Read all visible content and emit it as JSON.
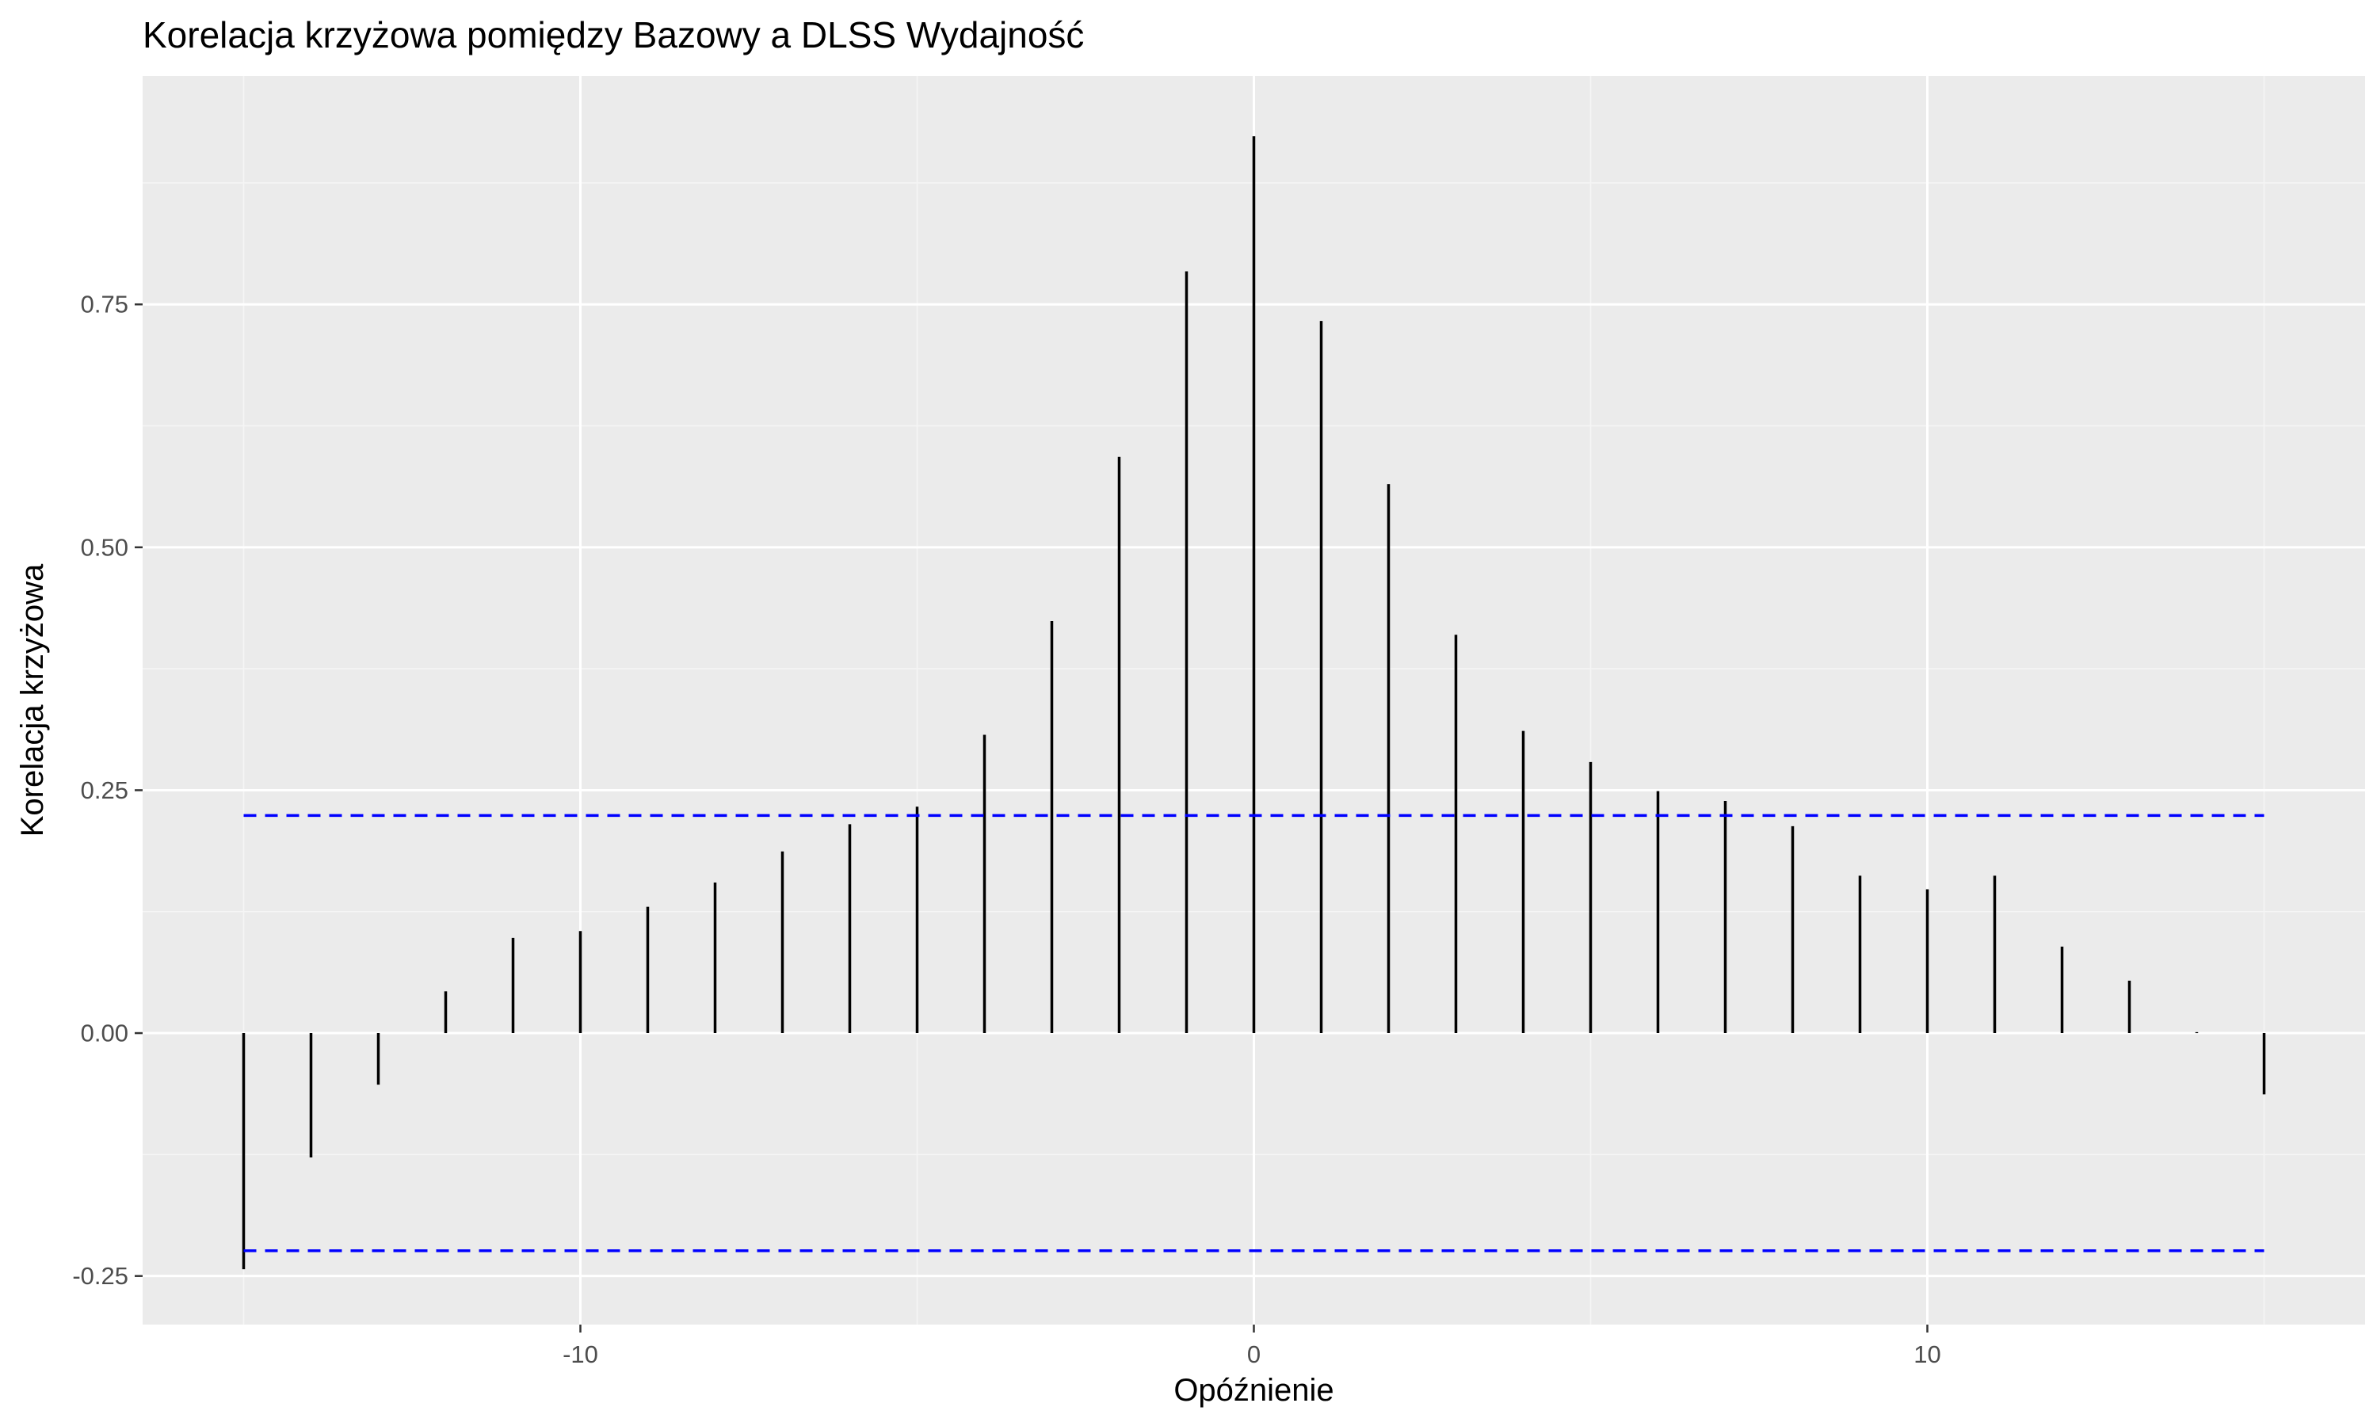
{
  "chart_data": {
    "type": "bar",
    "subtype": "lollipop-acf",
    "title": "Korelacja krzyżowa pomiędzy Bazowy a DLSS Wydajność",
    "xlabel": "Opóźnienie",
    "ylabel": "Korelacja krzyżowa",
    "xlim": [
      -16.5,
      16.5
    ],
    "ylim": [
      -0.3,
      0.985
    ],
    "x_ticks": [
      -10,
      0,
      10
    ],
    "x_tick_labels": [
      "-10",
      "0",
      "10"
    ],
    "y_ticks": [
      -0.25,
      0.0,
      0.25,
      0.5,
      0.75
    ],
    "y_tick_labels": [
      "-0.25",
      "0.00",
      "0.25",
      "0.50",
      "0.75"
    ],
    "grid": true,
    "x": [
      -15,
      -14,
      -13,
      -12,
      -11,
      -10,
      -9,
      -8,
      -7,
      -6,
      -5,
      -4,
      -3,
      -2,
      -1,
      0,
      1,
      2,
      3,
      4,
      5,
      6,
      7,
      8,
      9,
      10,
      11,
      12,
      13,
      14,
      15
    ],
    "values": [
      -0.243,
      -0.128,
      -0.053,
      0.043,
      0.098,
      0.105,
      0.13,
      0.155,
      0.187,
      0.215,
      0.233,
      0.307,
      0.424,
      0.593,
      0.784,
      0.923,
      0.733,
      0.565,
      0.41,
      0.311,
      0.279,
      0.249,
      0.239,
      0.213,
      0.162,
      0.148,
      0.162,
      0.089,
      0.054,
      0.001,
      -0.063
    ],
    "confidence_bounds": [
      0.224,
      -0.224
    ],
    "colors": {
      "panel_background": "#ebebeb",
      "grid_major": "#ffffff",
      "grid_minor": "#f5f5f5",
      "bar": "#000000",
      "bound_line": "#0000ff",
      "tick_label": "#4d4d4d",
      "tick_mark": "#333333"
    }
  }
}
